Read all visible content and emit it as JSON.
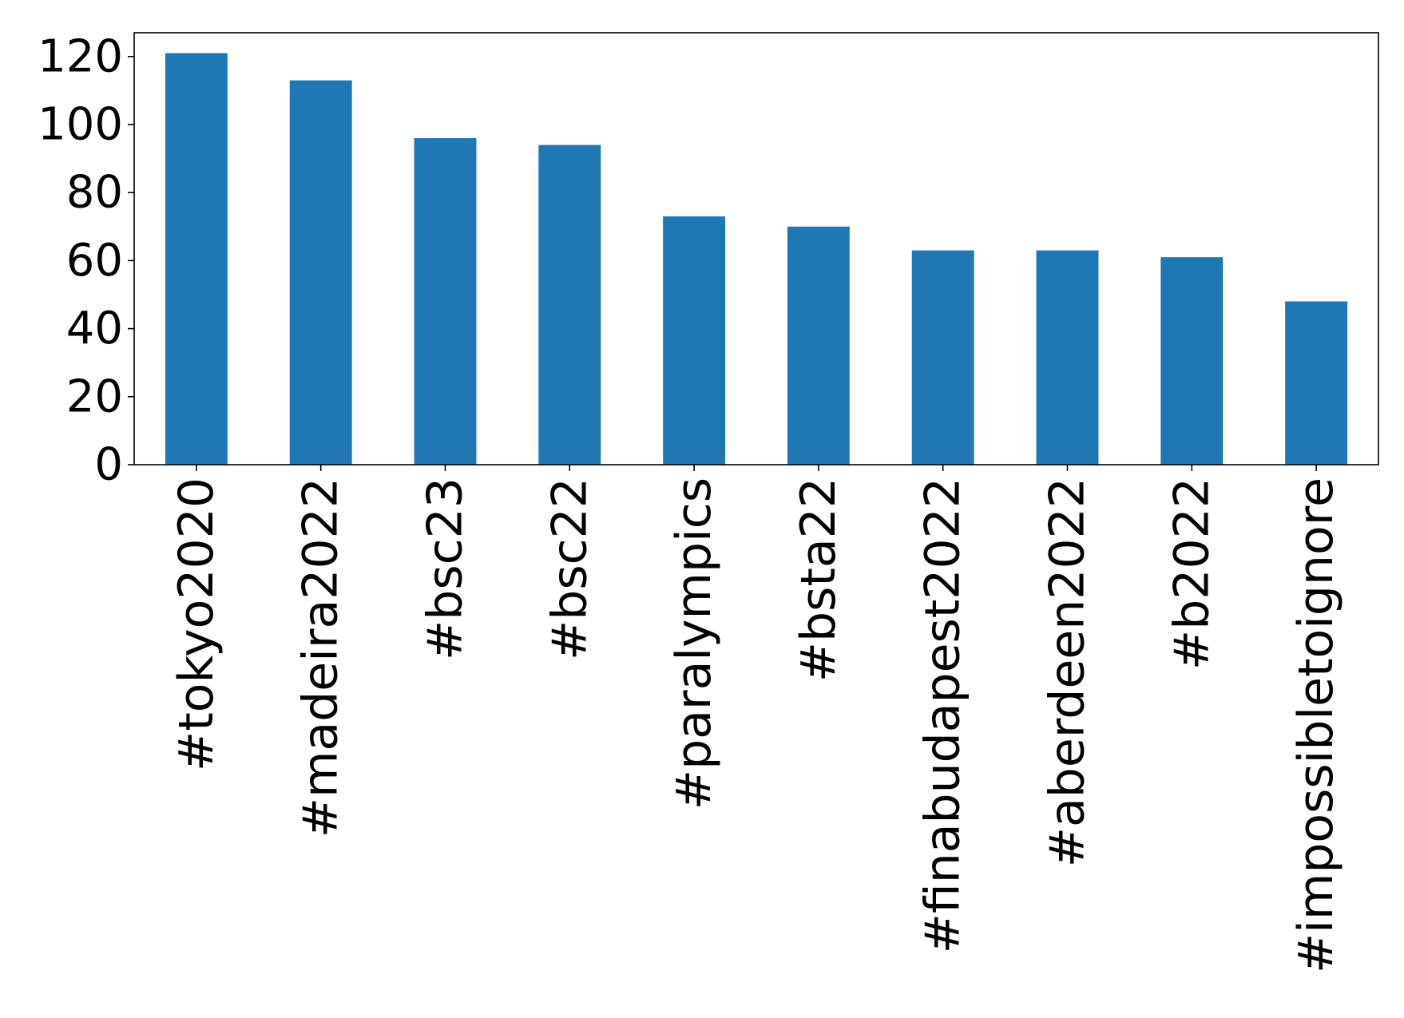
{
  "chart_data": {
    "type": "bar",
    "categories": [
      "#tokyo2020",
      "#madeira2022",
      "#bsc23",
      "#bsc22",
      "#paralympics",
      "#bsta22",
      "#finabudapest2022",
      "#aberdeen2022",
      "#b2022",
      "#impossibletoignore"
    ],
    "values": [
      121,
      113,
      96,
      94,
      73,
      70,
      63,
      63,
      61,
      48
    ],
    "title": "",
    "xlabel": "",
    "ylabel": "",
    "ylim": [
      0,
      127
    ],
    "yticks": [
      0,
      20,
      40,
      60,
      80,
      100,
      120
    ],
    "grid": false,
    "bar_color": "#1f77b4"
  }
}
